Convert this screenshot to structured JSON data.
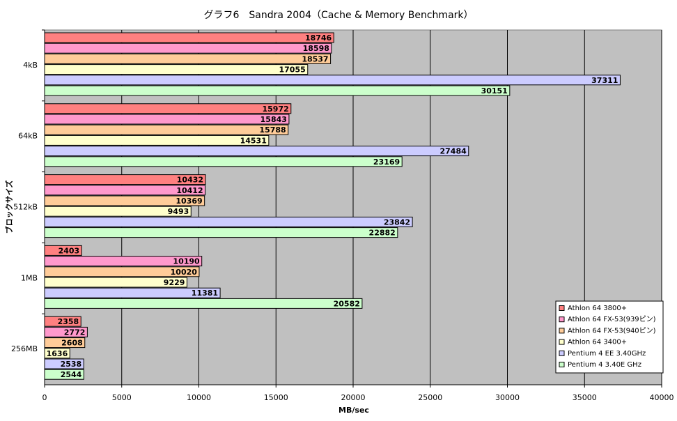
{
  "chart_data": {
    "type": "hbar",
    "title": "グラフ6　Sandra 2004（Cache & Memory Benchmark）",
    "x_label": "MB/sec",
    "y_label": "ブロックサイズ",
    "categories": [
      "4kB",
      "64kB",
      "512kB",
      "1MB",
      "256MB"
    ],
    "series": [
      {
        "name": "Athlon 64 3800+",
        "color": "#ff8080",
        "values": [
          18746,
          15972,
          10432,
          2403,
          2358
        ]
      },
      {
        "name": "Athlon 64 FX-53(939ピン)",
        "color": "#ff99cc",
        "values": [
          18598,
          15843,
          10412,
          10190,
          2772
        ]
      },
      {
        "name": "Athlon 64 FX-53(940ピン)",
        "color": "#ffcc99",
        "values": [
          18537,
          15788,
          10369,
          10020,
          2608
        ]
      },
      {
        "name": "Athlon 64 3400+",
        "color": "#ffffcc",
        "values": [
          17055,
          14531,
          9493,
          9229,
          1636
        ]
      },
      {
        "name": "Pentium 4 EE 3.40GHz",
        "color": "#ccccff",
        "values": [
          37311,
          27484,
          23842,
          11381,
          2538
        ]
      },
      {
        "name": "Pentium 4 3.40E GHz",
        "color": "#ccffcc",
        "values": [
          30151,
          23169,
          22882,
          20582,
          2544
        ]
      }
    ],
    "xlim": [
      0,
      40000
    ],
    "xticks": [
      0,
      5000,
      10000,
      15000,
      20000,
      25000,
      30000,
      35000,
      40000
    ],
    "grid": true,
    "legend": "lower right"
  }
}
